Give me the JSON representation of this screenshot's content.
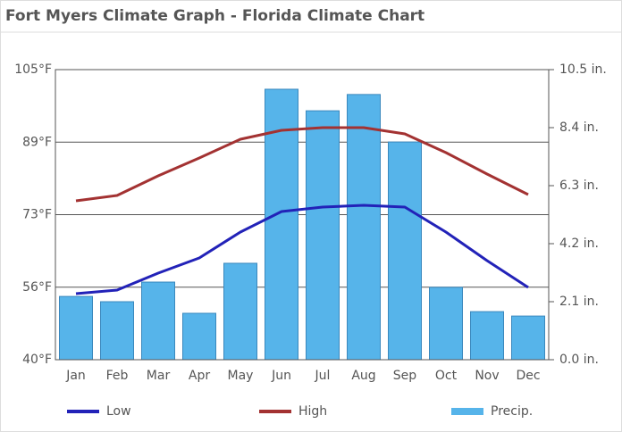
{
  "chart_data": {
    "type": "combo",
    "title": "Fort Myers Climate Graph - Florida Climate Chart",
    "categories": [
      "Jan",
      "Feb",
      "Mar",
      "Apr",
      "May",
      "Jun",
      "Jul",
      "Aug",
      "Sep",
      "Oct",
      "Nov",
      "Dec"
    ],
    "ylim": [
      40,
      105
    ],
    "yticks": [
      {
        "value": 40,
        "label": "40°F"
      },
      {
        "value": 56.25,
        "label": "56°F"
      },
      {
        "value": 72.5,
        "label": "73°F"
      },
      {
        "value": 88.75,
        "label": "89°F"
      },
      {
        "value": 105,
        "label": "105°F"
      }
    ],
    "y2lim": [
      0,
      10.5
    ],
    "y2ticks": [
      {
        "value": 0,
        "label": "0.0 in."
      },
      {
        "value": 2.1,
        "label": "2.1 in."
      },
      {
        "value": 4.2,
        "label": "4.2 in."
      },
      {
        "value": 6.3,
        "label": "6.3 in."
      },
      {
        "value": 8.4,
        "label": "8.4 in."
      },
      {
        "value": 10.5,
        "label": "10.5 in."
      }
    ],
    "grid": true,
    "series": [
      {
        "name": "Low",
        "type": "line",
        "color": "#2222b8",
        "axis": "y",
        "values": [
          54.8,
          55.6,
          59.4,
          62.8,
          68.6,
          73.2,
          74.2,
          74.6,
          74.2,
          68.6,
          62.2,
          56.2
        ]
      },
      {
        "name": "High",
        "type": "line",
        "color": "#a33232",
        "axis": "y",
        "values": [
          75.6,
          76.8,
          81.2,
          85.2,
          89.4,
          91.4,
          92,
          92,
          90.6,
          86.4,
          81.6,
          77
        ]
      },
      {
        "name": "Precip.",
        "type": "bar",
        "color": "#56b4ea",
        "axis": "y2",
        "values": [
          2.29,
          2.1,
          2.81,
          1.68,
          3.49,
          9.79,
          9.01,
          9.6,
          7.88,
          2.62,
          1.74,
          1.58
        ]
      }
    ]
  }
}
